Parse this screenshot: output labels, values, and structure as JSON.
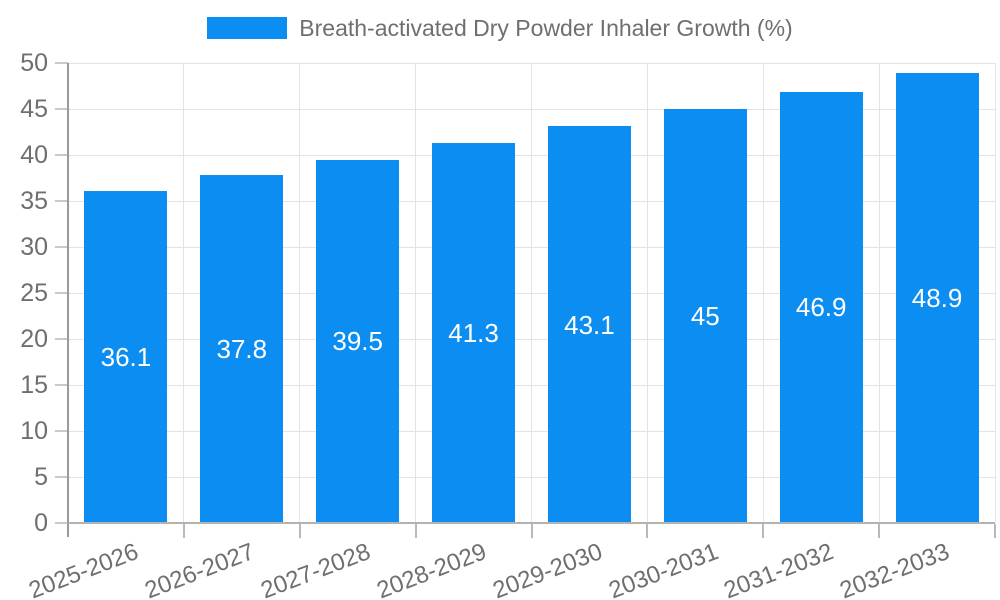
{
  "legend": {
    "label": "Breath-activated Dry Powder Inhaler Growth (%)"
  },
  "chart_data": {
    "type": "bar",
    "title": "",
    "xlabel": "",
    "ylabel": "",
    "categories": [
      "2025-2026",
      "2026-2027",
      "2027-2028",
      "2028-2029",
      "2029-2030",
      "2030-2031",
      "2031-2032",
      "2032-2033"
    ],
    "series": [
      {
        "name": "Breath-activated Dry Powder Inhaler Growth (%)",
        "values": [
          36.1,
          37.8,
          39.5,
          41.3,
          43.1,
          45,
          46.9,
          48.9
        ]
      }
    ],
    "value_labels": [
      "36.1",
      "37.8",
      "39.5",
      "41.3",
      "43.1",
      "45",
      "46.9",
      "48.9"
    ],
    "ylim": [
      0,
      50
    ],
    "yticks": [
      0,
      5,
      10,
      15,
      20,
      25,
      30,
      35,
      40,
      45,
      50
    ],
    "grid": {
      "horizontal": true,
      "vertical": true
    },
    "legend_position": "top-center",
    "x_label_rotation_deg": -21,
    "colors": {
      "bar": "#0c8df2",
      "axis_text": "#6f6f6f",
      "value_text": "#ffffff",
      "grid_line": "#e3e3e3",
      "x_axis_line": "#b3b3b3",
      "y_axis_line": "#9a9a9a",
      "tick": "#c9c9c9",
      "bottom_tick": "#b9b9b9",
      "background": "#ffffff"
    }
  }
}
